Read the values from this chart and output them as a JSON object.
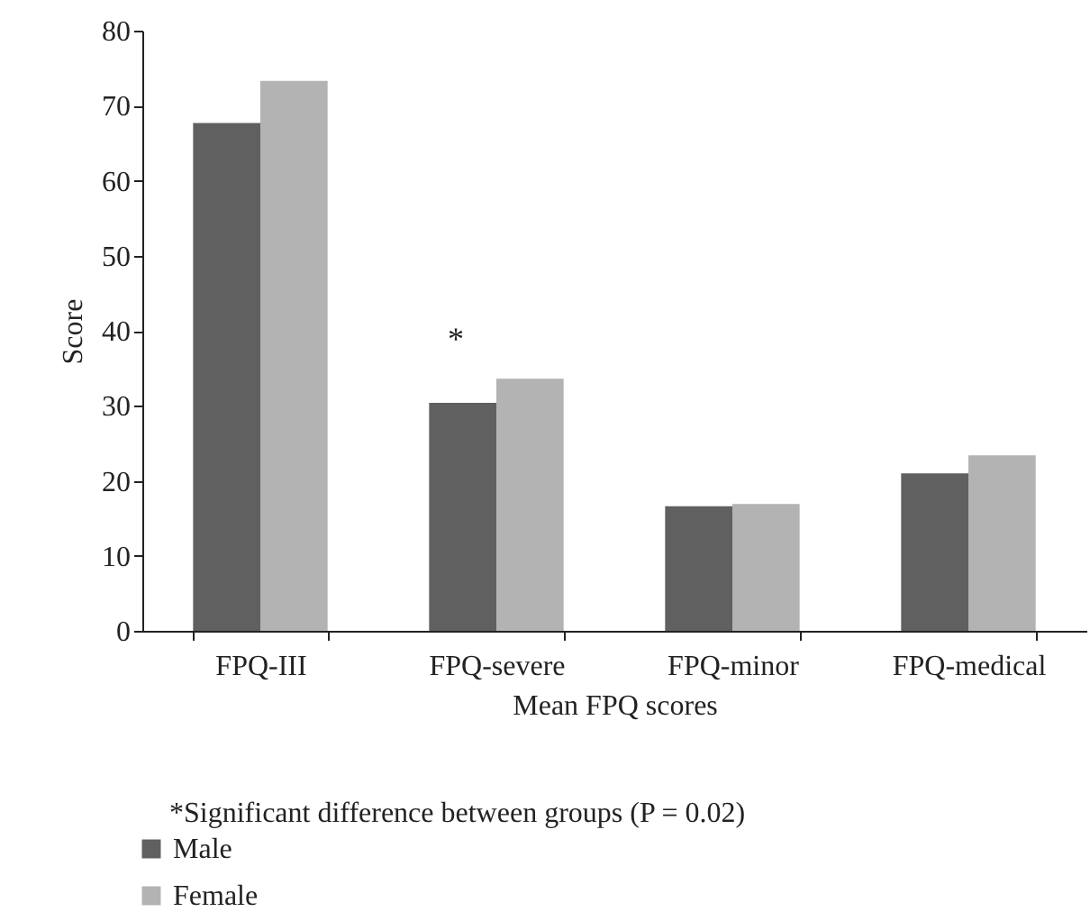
{
  "chart_data": {
    "type": "bar",
    "xlabel": "Mean FPQ scores",
    "ylabel": "Score",
    "categories": [
      "FPQ-III",
      "FPQ-severe",
      "FPQ-minor",
      "FPQ-medical"
    ],
    "series": [
      {
        "name": "Male",
        "color": "#606060",
        "values": [
          67.7,
          30.4,
          16.6,
          21.0
        ]
      },
      {
        "name": "Female",
        "color": "#b3b3b3",
        "values": [
          73.3,
          33.6,
          16.9,
          23.4
        ]
      }
    ],
    "ylim": [
      0,
      80
    ],
    "yticks": [
      0,
      10,
      20,
      30,
      40,
      50,
      60,
      70,
      80
    ],
    "grid": false,
    "legend": "bottom left",
    "annotations": [
      "*",
      "*Significant difference between groups (P = 0.02)"
    ]
  }
}
